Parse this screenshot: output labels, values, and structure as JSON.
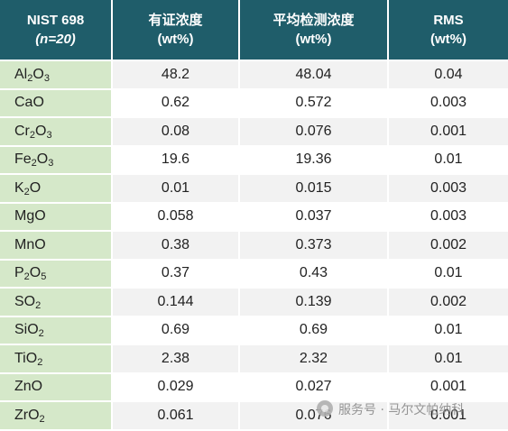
{
  "header": {
    "col0_line1": "NIST 698",
    "col0_line2": "(n=20)",
    "col1_line1": "有证浓度",
    "col1_line2": "(wt%)",
    "col2_line1": "平均检测浓度",
    "col2_line2": "(wt%)",
    "col3_line1": "RMS",
    "col3_line2": "(wt%)"
  },
  "rows": [
    {
      "parts": [
        [
          "Al",
          "2"
        ],
        [
          "O",
          "3"
        ]
      ],
      "certified": "48.2",
      "measured": "48.04",
      "rms": "0.04"
    },
    {
      "parts": [
        [
          "CaO",
          ""
        ]
      ],
      "certified": "0.62",
      "measured": "0.572",
      "rms": "0.003"
    },
    {
      "parts": [
        [
          "Cr",
          "2"
        ],
        [
          "O",
          "3"
        ]
      ],
      "certified": "0.08",
      "measured": "0.076",
      "rms": "0.001"
    },
    {
      "parts": [
        [
          "Fe",
          "2"
        ],
        [
          "O",
          "3"
        ]
      ],
      "certified": "19.6",
      "measured": "19.36",
      "rms": "0.01"
    },
    {
      "parts": [
        [
          "K",
          "2"
        ],
        [
          "O",
          ""
        ]
      ],
      "certified": "0.01",
      "measured": "0.015",
      "rms": "0.003"
    },
    {
      "parts": [
        [
          "MgO",
          ""
        ]
      ],
      "certified": "0.058",
      "measured": "0.037",
      "rms": "0.003"
    },
    {
      "parts": [
        [
          "MnO",
          ""
        ]
      ],
      "certified": "0.38",
      "measured": "0.373",
      "rms": "0.002"
    },
    {
      "parts": [
        [
          "P",
          "2"
        ],
        [
          "O",
          "5"
        ]
      ],
      "certified": "0.37",
      "measured": "0.43",
      "rms": "0.01"
    },
    {
      "parts": [
        [
          "SO",
          "2"
        ]
      ],
      "certified": "0.144",
      "measured": "0.139",
      "rms": "0.002"
    },
    {
      "parts": [
        [
          "SiO",
          "2"
        ]
      ],
      "certified": "0.69",
      "measured": "0.69",
      "rms": "0.01"
    },
    {
      "parts": [
        [
          "TiO",
          "2"
        ]
      ],
      "certified": "2.38",
      "measured": "2.32",
      "rms": "0.01"
    },
    {
      "parts": [
        [
          "ZnO",
          ""
        ]
      ],
      "certified": "0.029",
      "measured": "0.027",
      "rms": "0.001"
    },
    {
      "parts": [
        [
          "ZrO",
          "2"
        ]
      ],
      "certified": "0.061",
      "measured": "0.076",
      "rms": "0.001"
    }
  ],
  "watermark": "服务号 · 马尔文帕纳科",
  "colors": {
    "header_bg": "#1f5d6a",
    "compound_bg": "#d5e8c9",
    "row_alt": "#f2f2f2"
  }
}
